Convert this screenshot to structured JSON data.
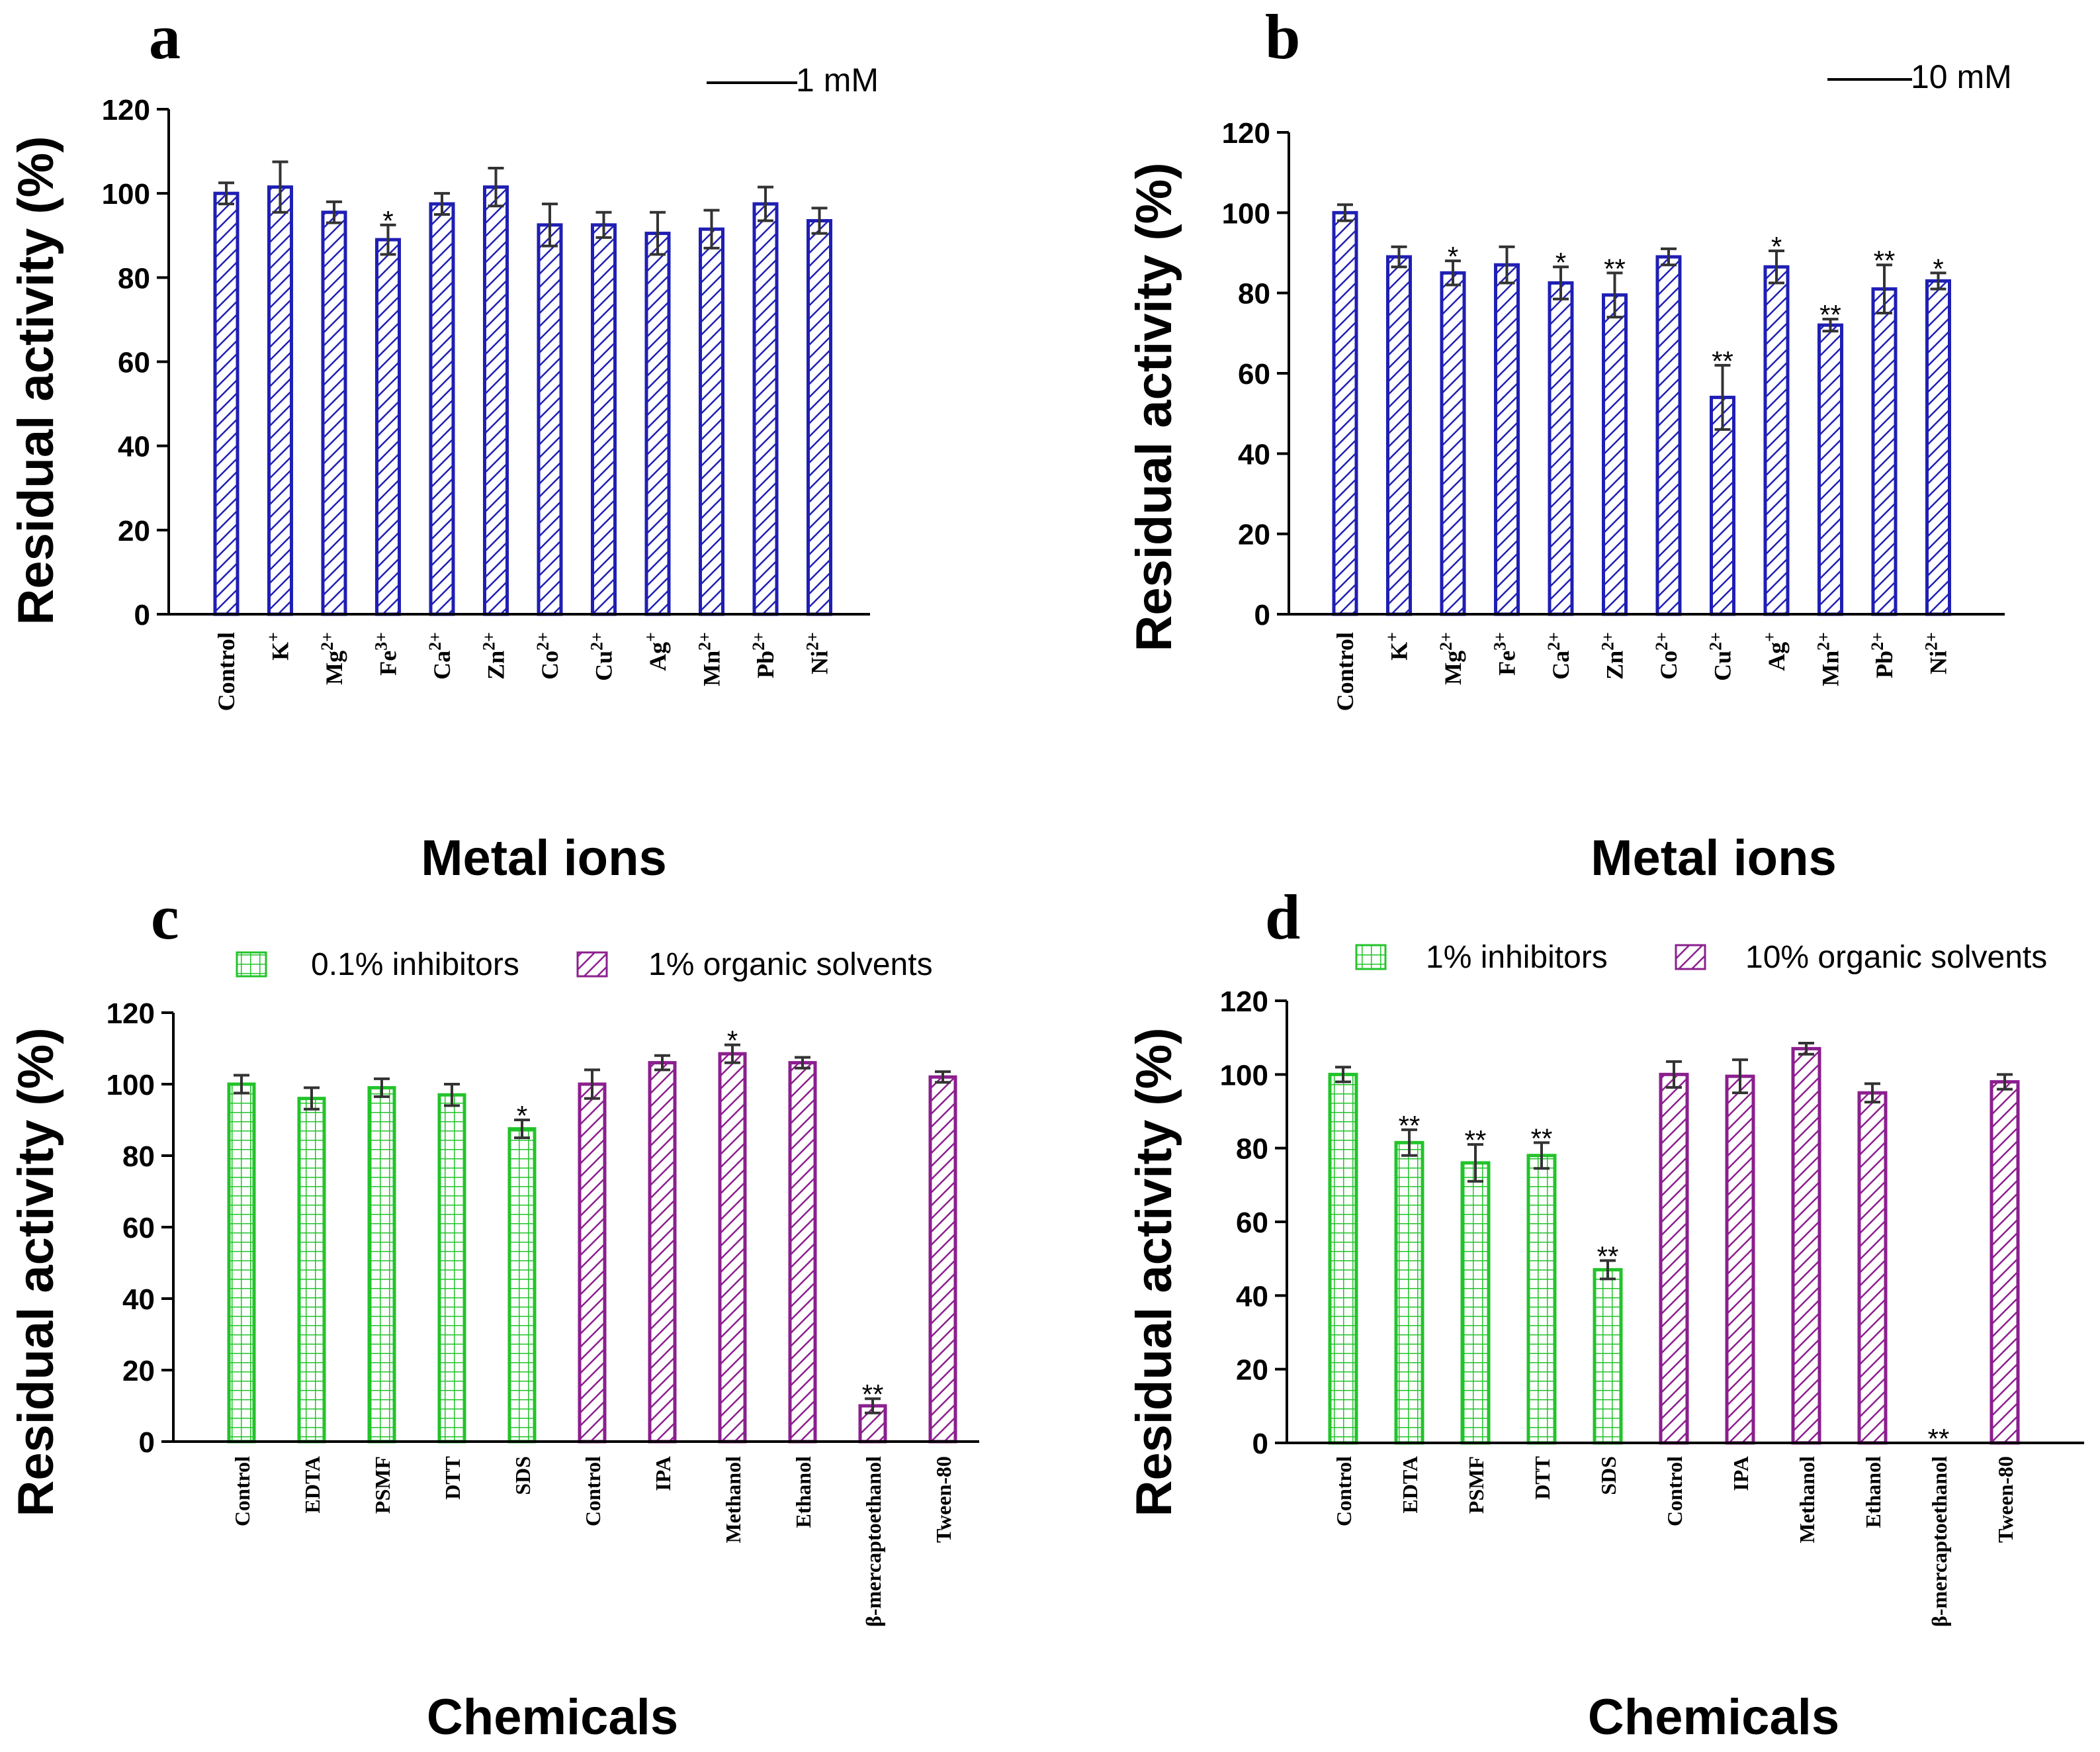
{
  "colors": {
    "axis": "#000000",
    "blue_bar": "#1f1fb4",
    "green_bar": "#22c32a",
    "purple_bar": "#8b1f8e",
    "error": "#333333"
  },
  "chart_data": [
    {
      "id": "a",
      "type": "bar",
      "panel_label": "a",
      "legend": [
        {
          "name": "1 mM",
          "style": "line"
        }
      ],
      "ylabel": "Residual activity (%)",
      "xlabel": "Metal ions",
      "ylim": [
        0,
        120
      ],
      "yticks": [
        "0",
        "20",
        "40",
        "60",
        "80",
        "100",
        "120"
      ],
      "tick_values": [
        0,
        20,
        40,
        60,
        80,
        100,
        120
      ],
      "categories": [
        {
          "base": "Control",
          "sup": ""
        },
        {
          "base": "K",
          "sup": "+"
        },
        {
          "base": "Mg",
          "sup": "2+"
        },
        {
          "base": "Fe",
          "sup": "3+"
        },
        {
          "base": "Ca",
          "sup": "2+"
        },
        {
          "base": "Zn",
          "sup": "2+"
        },
        {
          "base": "Co",
          "sup": "2+"
        },
        {
          "base": "Cu",
          "sup": "2+"
        },
        {
          "base": "Ag",
          "sup": "+"
        },
        {
          "base": "Mn",
          "sup": "2+"
        },
        {
          "base": "Pb",
          "sup": "2+"
        },
        {
          "base": "Ni",
          "sup": "2+"
        }
      ],
      "values": [
        100,
        101.5,
        95.5,
        89,
        97.5,
        101.5,
        92.5,
        92.5,
        90.5,
        91.5,
        97.5,
        93.5
      ],
      "errors": [
        2.5,
        6,
        2.5,
        3.5,
        2.5,
        4.5,
        5,
        3,
        5,
        4.5,
        4,
        3
      ],
      "significance": [
        "",
        "",
        "",
        "*",
        "",
        "",
        "",
        "",
        "",
        "",
        "",
        ""
      ],
      "series_style": [
        "blue",
        "blue",
        "blue",
        "blue",
        "blue",
        "blue",
        "blue",
        "blue",
        "blue",
        "blue",
        "blue",
        "blue"
      ]
    },
    {
      "id": "b",
      "type": "bar",
      "panel_label": "b",
      "legend": [
        {
          "name": "10 mM",
          "style": "line"
        }
      ],
      "ylabel": "Residual activity (%)",
      "xlabel": "Metal ions",
      "ylim": [
        0,
        120
      ],
      "yticks": [
        "0",
        "20",
        "40",
        "60",
        "80",
        "100",
        "120"
      ],
      "tick_values": [
        0,
        20,
        40,
        60,
        80,
        100,
        120
      ],
      "categories": [
        {
          "base": "Control",
          "sup": ""
        },
        {
          "base": "K",
          "sup": "+"
        },
        {
          "base": "Mg",
          "sup": "2+"
        },
        {
          "base": "Fe",
          "sup": "3+"
        },
        {
          "base": "Ca",
          "sup": "2+"
        },
        {
          "base": "Zn",
          "sup": "2+"
        },
        {
          "base": "Co",
          "sup": "2+"
        },
        {
          "base": "Cu",
          "sup": "2+"
        },
        {
          "base": "Ag",
          "sup": "+"
        },
        {
          "base": "Mn",
          "sup": "2+"
        },
        {
          "base": "Pb",
          "sup": "2+"
        },
        {
          "base": "Ni",
          "sup": "2+"
        }
      ],
      "values": [
        100,
        89,
        85,
        87,
        82.5,
        79.5,
        89,
        54,
        86.5,
        72,
        81,
        83
      ],
      "errors": [
        2,
        2.5,
        3,
        4.5,
        4,
        5.5,
        2,
        8,
        4,
        1.5,
        6,
        2
      ],
      "significance": [
        "",
        "",
        "*",
        "",
        "*",
        "**",
        "",
        "**",
        "*",
        "**",
        "**",
        "*"
      ],
      "series_style": [
        "blue",
        "blue",
        "blue",
        "blue",
        "blue",
        "blue",
        "blue",
        "blue",
        "blue",
        "blue",
        "blue",
        "blue"
      ]
    },
    {
      "id": "c",
      "type": "bar",
      "panel_label": "c",
      "legend": [
        {
          "name": "0.1% inhibitors",
          "style": "green"
        },
        {
          "name": "1% organic solvents",
          "style": "purple"
        }
      ],
      "ylabel": "Residual activity (%)",
      "xlabel": "Chemicals",
      "ylim": [
        0,
        120
      ],
      "yticks": [
        "0",
        "20",
        "40",
        "60",
        "80",
        "100",
        "120"
      ],
      "tick_values": [
        0,
        20,
        40,
        60,
        80,
        100,
        120
      ],
      "categories": [
        {
          "base": "Control",
          "sup": ""
        },
        {
          "base": "EDTA",
          "sup": ""
        },
        {
          "base": "PSMF",
          "sup": ""
        },
        {
          "base": "DTT",
          "sup": ""
        },
        {
          "base": "SDS",
          "sup": ""
        },
        {
          "base": "Control",
          "sup": ""
        },
        {
          "base": "IPA",
          "sup": ""
        },
        {
          "base": "Methanol",
          "sup": ""
        },
        {
          "base": "Ethanol",
          "sup": ""
        },
        {
          "base": "β-mercaptoethanol",
          "sup": ""
        },
        {
          "base": "Tween-80",
          "sup": ""
        }
      ],
      "values": [
        100,
        96,
        99,
        97,
        87.5,
        100,
        106,
        108.5,
        106,
        10,
        102
      ],
      "errors": [
        2.5,
        3,
        2.5,
        3,
        2.5,
        4,
        2,
        2.5,
        1.5,
        2,
        1.5
      ],
      "significance": [
        "",
        "",
        "",
        "",
        "*",
        "",
        "",
        "*",
        "",
        "**",
        ""
      ],
      "series_style": [
        "green",
        "green",
        "green",
        "green",
        "green",
        "purple",
        "purple",
        "purple",
        "purple",
        "purple",
        "purple"
      ]
    },
    {
      "id": "d",
      "type": "bar",
      "panel_label": "d",
      "legend": [
        {
          "name": "1% inhibitors",
          "style": "green"
        },
        {
          "name": "10% organic solvents",
          "style": "purple"
        }
      ],
      "ylabel": "Residual activity (%)",
      "xlabel": "Chemicals",
      "ylim": [
        0,
        120
      ],
      "yticks": [
        "0",
        "20",
        "40",
        "60",
        "80",
        "100",
        "120"
      ],
      "tick_values": [
        0,
        20,
        40,
        60,
        80,
        100,
        120
      ],
      "categories": [
        {
          "base": "Control",
          "sup": ""
        },
        {
          "base": "EDTA",
          "sup": ""
        },
        {
          "base": "PSMF",
          "sup": ""
        },
        {
          "base": "DTT",
          "sup": ""
        },
        {
          "base": "SDS",
          "sup": ""
        },
        {
          "base": "Control",
          "sup": ""
        },
        {
          "base": "IPA",
          "sup": ""
        },
        {
          "base": "Methanol",
          "sup": ""
        },
        {
          "base": "Ethanol",
          "sup": ""
        },
        {
          "base": "β-mercaptoethanol",
          "sup": ""
        },
        {
          "base": "Tween-80",
          "sup": ""
        }
      ],
      "values": [
        100,
        81.5,
        76,
        78,
        47,
        100,
        99.5,
        107,
        95,
        0,
        98
      ],
      "errors": [
        2,
        3.5,
        5,
        3.5,
        2.5,
        3.5,
        4.5,
        1.5,
        2.5,
        0,
        2
      ],
      "significance": [
        "",
        "**",
        "**",
        "**",
        "**",
        "",
        "",
        "",
        "",
        "**",
        ""
      ],
      "series_style": [
        "green",
        "green",
        "green",
        "green",
        "green",
        "purple",
        "purple",
        "purple",
        "purple",
        "purple",
        "purple"
      ]
    }
  ]
}
